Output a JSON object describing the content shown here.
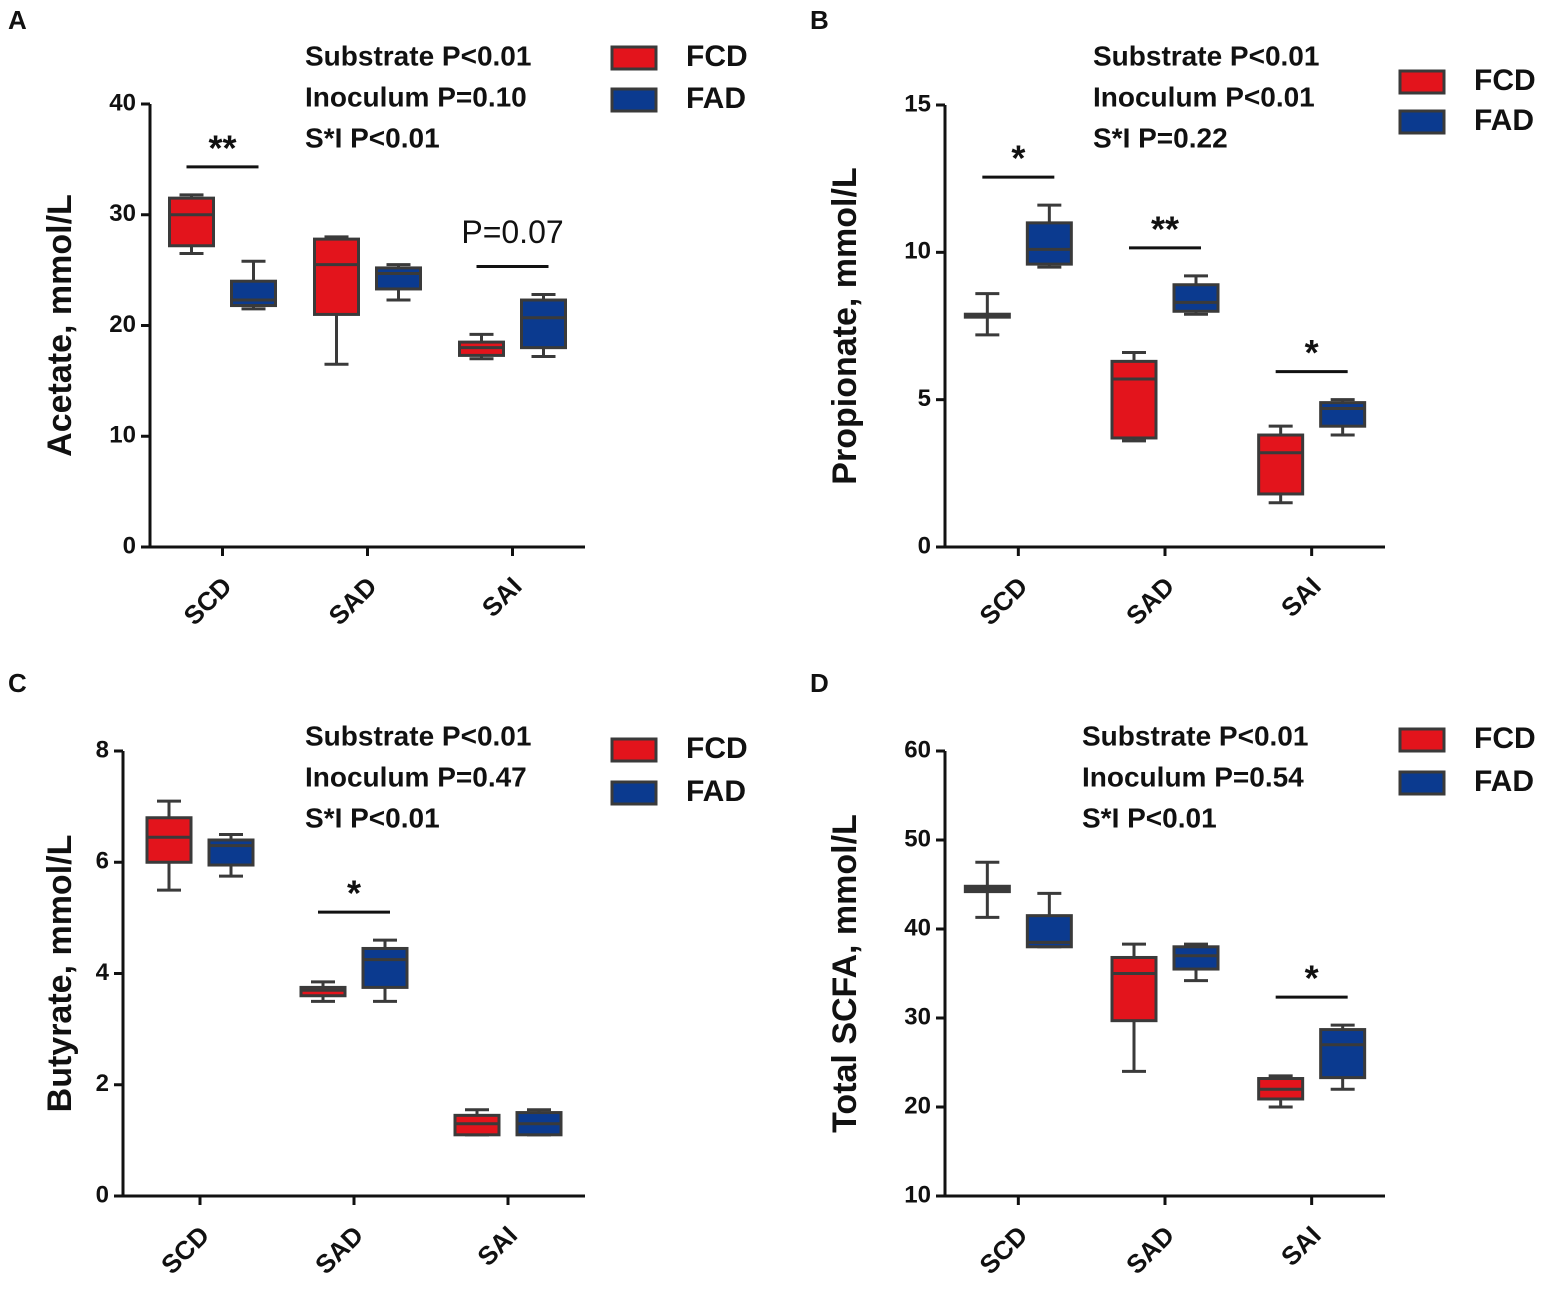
{
  "chart_data": [
    {
      "type": "box",
      "panel": "A",
      "ylabel": "Acetate, mmol/L",
      "categories": [
        "SCD",
        "SAD",
        "SAI"
      ],
      "ylim": [
        0,
        40
      ],
      "yticks": [
        0,
        10,
        20,
        30,
        40
      ],
      "stats": [
        "Substrate P<0.01",
        "Inoculum P=0.10",
        "S*I P<0.01"
      ],
      "annotations": [
        {
          "text": "**",
          "category": "SCD"
        },
        {
          "text": "P=0.07",
          "category": "SAI"
        }
      ],
      "series": [
        {
          "name": "FCD",
          "color": "#e3141c",
          "values": [
            {
              "min": 26.5,
              "q1": 27.2,
              "median": 30,
              "q3": 31.5,
              "max": 31.8
            },
            {
              "min": 16.5,
              "q1": 21,
              "median": 25.5,
              "q3": 27.8,
              "max": 28
            },
            {
              "min": 17,
              "q1": 17.3,
              "median": 18,
              "q3": 18.5,
              "max": 19.2
            }
          ]
        },
        {
          "name": "FAD",
          "color": "#0b3a8f",
          "values": [
            {
              "min": 21.5,
              "q1": 21.8,
              "median": 22.3,
              "q3": 24,
              "max": 25.8
            },
            {
              "min": 22.3,
              "q1": 23.3,
              "median": 24.7,
              "q3": 25.2,
              "max": 25.5
            },
            {
              "min": 17.2,
              "q1": 18,
              "median": 20.7,
              "q3": 22.3,
              "max": 22.8
            }
          ]
        }
      ]
    },
    {
      "type": "box",
      "panel": "B",
      "ylabel": "Propionate, mmol/L",
      "categories": [
        "SCD",
        "SAD",
        "SAI"
      ],
      "ylim": [
        0,
        15
      ],
      "yticks": [
        0,
        5,
        10,
        15
      ],
      "stats": [
        "Substrate P<0.01",
        "Inoculum P<0.01",
        "S*I P=0.22"
      ],
      "annotations": [
        {
          "text": "*",
          "category": "SCD"
        },
        {
          "text": "**",
          "category": "SAD"
        },
        {
          "text": "*",
          "category": "SAI"
        }
      ],
      "series": [
        {
          "name": "FCD",
          "color": "#e3141c",
          "values": [
            {
              "min": 7.2,
              "q1": 7.8,
              "median": 7.85,
              "q3": 7.9,
              "max": 8.6
            },
            {
              "min": 3.6,
              "q1": 3.7,
              "median": 5.7,
              "q3": 6.3,
              "max": 6.6
            },
            {
              "min": 1.5,
              "q1": 1.8,
              "median": 3.2,
              "q3": 3.8,
              "max": 4.1
            }
          ]
        },
        {
          "name": "FAD",
          "color": "#0b3a8f",
          "values": [
            {
              "min": 9.5,
              "q1": 9.6,
              "median": 10.1,
              "q3": 11,
              "max": 11.6
            },
            {
              "min": 7.9,
              "q1": 8,
              "median": 8.3,
              "q3": 8.9,
              "max": 9.2
            },
            {
              "min": 3.8,
              "q1": 4.1,
              "median": 4.7,
              "q3": 4.9,
              "max": 5
            }
          ]
        }
      ]
    },
    {
      "type": "box",
      "panel": "C",
      "ylabel": "Butyrate, mmol/L",
      "categories": [
        "SCD",
        "SAD",
        "SAI"
      ],
      "ylim": [
        0,
        8
      ],
      "yticks": [
        0,
        2,
        4,
        6,
        8
      ],
      "stats": [
        "Substrate P<0.01",
        "Inoculum P=0.47",
        "S*I P<0.01"
      ],
      "annotations": [
        {
          "text": "*",
          "category": "SAD"
        }
      ],
      "series": [
        {
          "name": "FCD",
          "color": "#e3141c",
          "values": [
            {
              "min": 5.5,
              "q1": 6,
              "median": 6.45,
              "q3": 6.8,
              "max": 7.1
            },
            {
              "min": 3.5,
              "q1": 3.6,
              "median": 3.7,
              "q3": 3.75,
              "max": 3.85
            },
            {
              "min": 1.1,
              "q1": 1.1,
              "median": 1.3,
              "q3": 1.45,
              "max": 1.55
            }
          ]
        },
        {
          "name": "FAD",
          "color": "#0b3a8f",
          "values": [
            {
              "min": 5.75,
              "q1": 5.95,
              "median": 6.3,
              "q3": 6.4,
              "max": 6.5
            },
            {
              "min": 3.5,
              "q1": 3.75,
              "median": 4.25,
              "q3": 4.45,
              "max": 4.6
            },
            {
              "min": 1.1,
              "q1": 1.1,
              "median": 1.3,
              "q3": 1.5,
              "max": 1.55
            }
          ]
        }
      ]
    },
    {
      "type": "box",
      "panel": "D",
      "ylabel": "Total SCFA, mmol/L",
      "categories": [
        "SCD",
        "SAD",
        "SAI"
      ],
      "ylim": [
        10,
        60
      ],
      "yticks": [
        10,
        20,
        30,
        40,
        50,
        60
      ],
      "stats": [
        "Substrate P<0.01",
        "Inoculum P=0.54",
        "S*I P<0.01"
      ],
      "annotations": [
        {
          "text": "*",
          "category": "SAI"
        }
      ],
      "series": [
        {
          "name": "FCD",
          "color": "#e3141c",
          "values": [
            {
              "min": 41.3,
              "q1": 44.2,
              "median": 44.5,
              "q3": 44.8,
              "max": 47.5
            },
            {
              "min": 24,
              "q1": 29.7,
              "median": 35,
              "q3": 36.8,
              "max": 38.3
            },
            {
              "min": 20,
              "q1": 20.9,
              "median": 22,
              "q3": 23.2,
              "max": 23.5
            }
          ]
        },
        {
          "name": "FAD",
          "color": "#0b3a8f",
          "values": [
            {
              "min": 38,
              "q1": 38,
              "median": 38.5,
              "q3": 41.5,
              "max": 44
            },
            {
              "min": 34.2,
              "q1": 35.5,
              "median": 37,
              "q3": 38,
              "max": 38.3
            },
            {
              "min": 22,
              "q1": 23.3,
              "median": 27,
              "q3": 28.7,
              "max": 29.2
            }
          ]
        }
      ]
    }
  ]
}
